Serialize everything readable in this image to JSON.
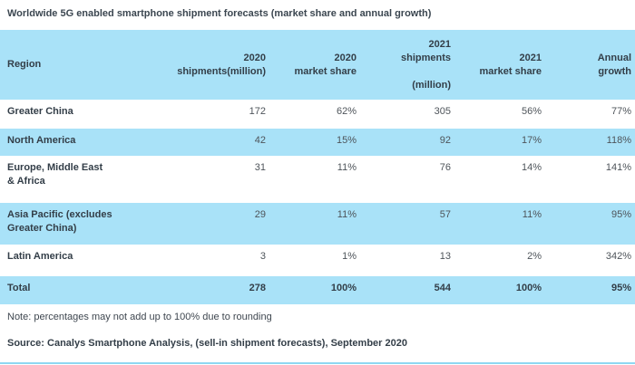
{
  "title": "Worldwide 5G enabled smartphone shipment forecasts (market share and annual growth)",
  "table": {
    "header": {
      "region": "Region",
      "shipments_2020": "2020\nshipments(million)",
      "share_2020": "2020\nmarket share",
      "shipments_2021": "2021\nshipments\n\n(million)",
      "share_2021": "2021\nmarket share",
      "annual_growth": "Annual\ngrowth"
    },
    "rows": [
      {
        "region": "Greater China",
        "shipments_2020": "172",
        "share_2020": "62%",
        "shipments_2021": "305",
        "share_2021": "56%",
        "growth": "77%"
      },
      {
        "region": "North America",
        "shipments_2020": "42",
        "share_2020": "15%",
        "shipments_2021": "92",
        "share_2021": "17%",
        "growth": "118%"
      },
      {
        "region": "Europe, Middle East\n& Africa",
        "shipments_2020": "31",
        "share_2020": "11%",
        "shipments_2021": "76",
        "share_2021": "14%",
        "growth": "141%"
      },
      {
        "region": "Asia Pacific (excludes\nGreater China)",
        "shipments_2020": "29",
        "share_2020": "11%",
        "shipments_2021": "57",
        "share_2021": "11%",
        "growth": "95%"
      },
      {
        "region": "Latin America",
        "shipments_2020": "3",
        "share_2020": "1%",
        "shipments_2021": "13",
        "share_2021": "2%",
        "growth": "342%"
      }
    ],
    "total": {
      "region": "Total",
      "shipments_2020": "278",
      "share_2020": "100%",
      "shipments_2021": "544",
      "share_2021": "100%",
      "growth": "95%"
    }
  },
  "note": "Note: percentages may not add up to 100% due to rounding",
  "source": "Source: Canalys Smartphone Analysis, (sell-in shipment forecasts), September 2020",
  "colors": {
    "row_highlight": "#a9e2f8",
    "bottom_rule": "#8ed7f2",
    "heading_text": "#333e48",
    "value_text": "#4e545a"
  },
  "chart_data": {
    "type": "table",
    "title": "Worldwide 5G enabled smartphone shipment forecasts (market share and annual growth)",
    "columns": [
      "Region",
      "2020 shipments(million)",
      "2020 market share",
      "2021 shipments (million)",
      "2021 market share",
      "Annual growth"
    ],
    "rows": [
      [
        "Greater China",
        172,
        "62%",
        305,
        "56%",
        "77%"
      ],
      [
        "North America",
        42,
        "15%",
        92,
        "17%",
        "118%"
      ],
      [
        "Europe, Middle East & Africa",
        31,
        "11%",
        76,
        "14%",
        "141%"
      ],
      [
        "Asia Pacific (excludes Greater China)",
        29,
        "11%",
        57,
        "11%",
        "95%"
      ],
      [
        "Latin America",
        3,
        "1%",
        13,
        "2%",
        "342%"
      ],
      [
        "Total",
        278,
        "100%",
        544,
        "100%",
        "95%"
      ]
    ],
    "note": "Note: percentages may not add up to 100% due to rounding",
    "source": "Source: Canalys Smartphone Analysis, (sell-in shipment forecasts), September 2020"
  }
}
